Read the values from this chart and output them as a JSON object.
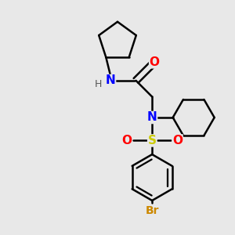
{
  "background_color": "#e8e8e8",
  "bond_color": "#000000",
  "N_color": "#0000ff",
  "O_color": "#ff0000",
  "S_color": "#cccc00",
  "Br_color": "#cc8800",
  "H_color": "#555555",
  "figsize": [
    3.0,
    3.0
  ],
  "dpi": 100,
  "xlim": [
    0,
    10
  ],
  "ylim": [
    0,
    10
  ]
}
